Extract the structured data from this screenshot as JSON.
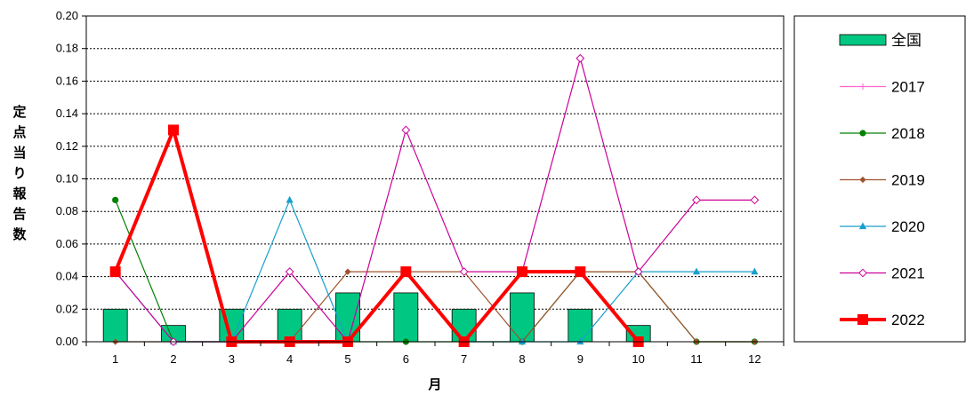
{
  "chart_data": {
    "type": "line",
    "xlabel": "月",
    "ylabel": "定点当り報告数",
    "categories": [
      "1",
      "2",
      "3",
      "4",
      "5",
      "6",
      "7",
      "8",
      "9",
      "10",
      "11",
      "12"
    ],
    "ylim": [
      0,
      0.2
    ],
    "yticks": [
      "0.00",
      "0.02",
      "0.04",
      "0.06",
      "0.08",
      "0.10",
      "0.12",
      "0.14",
      "0.16",
      "0.18",
      "0.20"
    ],
    "grid": "horizontal dashed",
    "legend_position": "right",
    "bar_series": {
      "name": "全国",
      "color": "#00c882",
      "values": [
        0.02,
        0.01,
        0.02,
        0.02,
        0.03,
        0.03,
        0.02,
        0.03,
        0.02,
        0.01,
        null,
        null
      ]
    },
    "series": [
      {
        "name": "2017",
        "color": "#ff66cc",
        "marker": "plus",
        "values": [
          null,
          null,
          null,
          null,
          null,
          null,
          null,
          null,
          null,
          null,
          null,
          null
        ]
      },
      {
        "name": "2018",
        "color": "#008000",
        "marker": "circle",
        "values": [
          0.087,
          0,
          0,
          0,
          0,
          0,
          0,
          0,
          0.043,
          0.043,
          0,
          0
        ]
      },
      {
        "name": "2019",
        "color": "#a0522d",
        "marker": "diamond-filled",
        "values": [
          0,
          0,
          0,
          0,
          0.043,
          0.043,
          0.043,
          0,
          0.043,
          0.043,
          0,
          0
        ]
      },
      {
        "name": "2020",
        "color": "#1a9fcc",
        "marker": "triangle",
        "values": [
          0.043,
          0,
          0,
          0.087,
          0,
          0.043,
          0,
          0,
          0,
          0.043,
          0.043,
          0.043
        ]
      },
      {
        "name": "2021",
        "color": "#cc0099",
        "marker": "diamond-open",
        "values": [
          0.043,
          0,
          0,
          0.043,
          0,
          0.13,
          0.043,
          0.043,
          0.174,
          0.043,
          0.087,
          0.087
        ]
      },
      {
        "name": "2022",
        "color": "#ff0000",
        "marker": "square",
        "values": [
          0.043,
          0.13,
          0,
          0,
          0,
          0.043,
          0,
          0.043,
          0.043,
          0,
          null,
          null
        ]
      }
    ]
  }
}
